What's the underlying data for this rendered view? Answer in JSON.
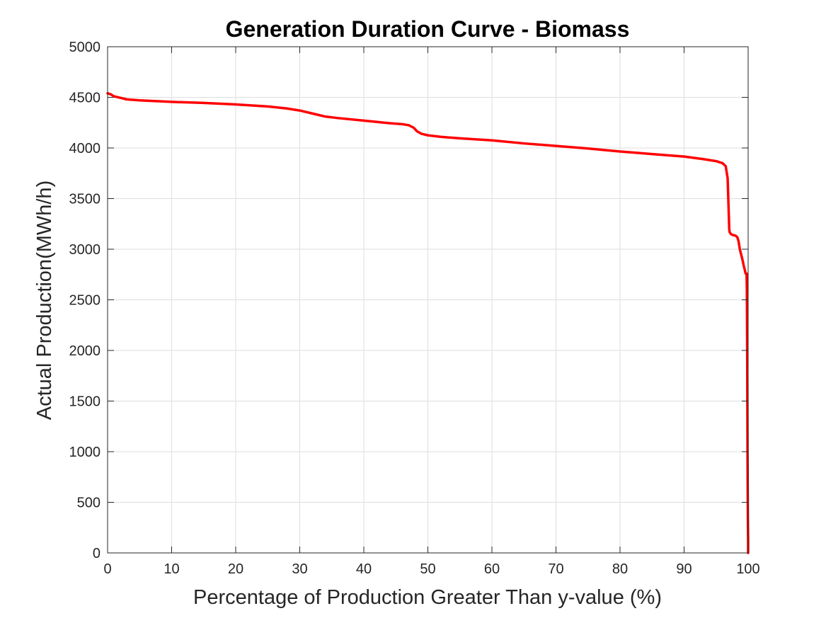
{
  "chart_data": {
    "type": "line",
    "title": "Generation Duration Curve - Biomass",
    "xlabel": "Percentage of Production Greater Than y-value (%)",
    "ylabel": "Actual Production(MWh/h)",
    "xlim": [
      0,
      100
    ],
    "ylim": [
      0,
      5000
    ],
    "xticks": [
      0,
      10,
      20,
      30,
      40,
      50,
      60,
      70,
      80,
      90,
      100
    ],
    "yticks": [
      0,
      500,
      1000,
      1500,
      2000,
      2500,
      3000,
      3500,
      4000,
      4500,
      5000
    ],
    "xtick_labels": [
      "0",
      "10",
      "20",
      "30",
      "40",
      "50",
      "60",
      "70",
      "80",
      "90",
      "100"
    ],
    "ytick_labels": [
      "0",
      "500",
      "1000",
      "1500",
      "2000",
      "2500",
      "3000",
      "3500",
      "4000",
      "4500",
      "5000"
    ],
    "grid": true,
    "box": true,
    "series": [
      {
        "color": "#ff0000",
        "x": [
          0,
          0.5,
          1,
          2,
          3,
          5,
          10,
          15,
          20,
          25,
          28,
          30,
          32,
          34,
          36,
          40,
          44,
          46,
          47,
          47.8,
          48.3,
          49,
          50,
          52,
          55,
          60,
          65,
          70,
          75,
          80,
          85,
          90,
          93,
          95,
          96,
          96.5,
          96.8,
          96.9,
          97,
          97.05,
          97.1,
          97.3,
          97.6,
          98,
          98.3,
          98.5,
          98.7,
          98.9,
          99.1,
          99.3,
          99.5,
          99.6,
          99.7,
          99.75,
          99.8,
          99.85,
          99.9,
          99.95,
          100,
          100
        ],
        "y": [
          4540,
          4530,
          4510,
          4495,
          4480,
          4470,
          4455,
          4445,
          4430,
          4410,
          4390,
          4370,
          4340,
          4310,
          4295,
          4270,
          4245,
          4235,
          4225,
          4200,
          4165,
          4140,
          4125,
          4110,
          4095,
          4075,
          4045,
          4020,
          3995,
          3965,
          3940,
          3915,
          3890,
          3870,
          3850,
          3820,
          3700,
          3500,
          3300,
          3200,
          3170,
          3150,
          3140,
          3135,
          3120,
          3080,
          3000,
          2950,
          2900,
          2840,
          2790,
          2760,
          2760,
          2760,
          2600,
          2000,
          1000,
          400,
          100,
          0
        ]
      }
    ]
  }
}
